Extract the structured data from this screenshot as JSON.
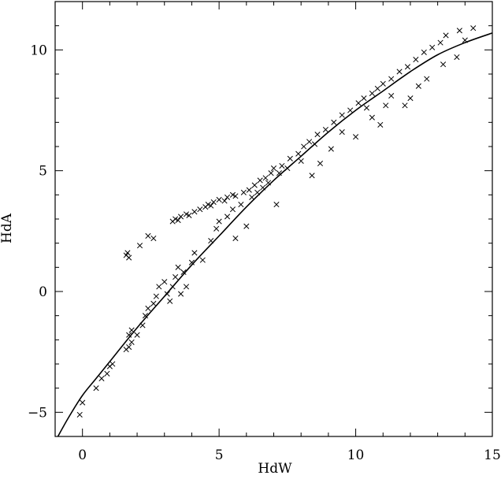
{
  "chart_data": {
    "type": "scatter",
    "title": "",
    "xlabel": "HdW",
    "ylabel": "HdA",
    "xlim": [
      -1,
      15
    ],
    "ylim": [
      -6,
      12
    ],
    "xticks": [
      0,
      5,
      10,
      15
    ],
    "yticks": [
      -5,
      0,
      5,
      10
    ],
    "xtick_labels": [
      "0",
      "5",
      "10",
      "15"
    ],
    "ytick_labels": [
      "−5",
      "0",
      "5",
      "10"
    ],
    "grid": false,
    "marker": "x",
    "series": [
      {
        "points": [
          [
            -0.1,
            -5.1
          ],
          [
            0.0,
            -4.6
          ],
          [
            0.5,
            -4.0
          ],
          [
            0.7,
            -3.6
          ],
          [
            0.9,
            -3.4
          ],
          [
            1.0,
            -3.1
          ],
          [
            1.1,
            -3.0
          ],
          [
            1.6,
            -2.4
          ],
          [
            1.7,
            -2.3
          ],
          [
            1.8,
            -2.1
          ],
          [
            1.7,
            -1.8
          ],
          [
            1.8,
            -1.6
          ],
          [
            2.0,
            -1.8
          ],
          [
            2.2,
            -1.4
          ],
          [
            2.3,
            -1.0
          ],
          [
            2.4,
            -0.7
          ],
          [
            2.6,
            -0.5
          ],
          [
            2.7,
            -0.2
          ],
          [
            2.8,
            0.2
          ],
          [
            3.0,
            0.4
          ],
          [
            3.1,
            -0.1
          ],
          [
            3.2,
            -0.4
          ],
          [
            3.3,
            0.2
          ],
          [
            3.6,
            -0.1
          ],
          [
            3.8,
            0.2
          ],
          [
            3.4,
            0.6
          ],
          [
            3.5,
            1.0
          ],
          [
            3.7,
            0.8
          ],
          [
            4.0,
            1.2
          ],
          [
            4.1,
            1.6
          ],
          [
            4.4,
            1.3
          ],
          [
            4.7,
            2.1
          ],
          [
            4.9,
            2.6
          ],
          [
            5.0,
            2.9
          ],
          [
            5.3,
            3.1
          ],
          [
            5.5,
            3.4
          ],
          [
            5.6,
            2.2
          ],
          [
            5.8,
            3.6
          ],
          [
            6.0,
            2.7
          ],
          [
            6.2,
            3.9
          ],
          [
            6.4,
            4.1
          ],
          [
            6.6,
            4.3
          ],
          [
            6.8,
            4.5
          ],
          [
            7.1,
            3.6
          ],
          [
            7.2,
            4.9
          ],
          [
            7.5,
            5.1
          ],
          [
            8.0,
            5.4
          ],
          [
            8.4,
            4.8
          ],
          [
            8.5,
            6.1
          ],
          [
            8.7,
            5.3
          ],
          [
            9.1,
            5.9
          ],
          [
            9.5,
            6.6
          ],
          [
            10.0,
            6.4
          ],
          [
            10.4,
            7.6
          ],
          [
            10.6,
            7.2
          ],
          [
            10.9,
            6.9
          ],
          [
            11.1,
            7.7
          ],
          [
            11.3,
            8.1
          ],
          [
            11.8,
            7.7
          ],
          [
            12.0,
            8.0
          ],
          [
            12.3,
            8.5
          ],
          [
            12.6,
            8.8
          ],
          [
            13.2,
            9.4
          ],
          [
            13.7,
            9.7
          ],
          [
            14.0,
            10.4
          ]
        ]
      },
      {
        "points": [
          [
            1.6,
            1.5
          ],
          [
            1.65,
            1.6
          ],
          [
            1.7,
            1.4
          ],
          [
            2.1,
            1.9
          ],
          [
            2.4,
            2.3
          ],
          [
            2.6,
            2.2
          ],
          [
            3.3,
            2.9
          ],
          [
            3.4,
            3.0
          ],
          [
            3.5,
            2.95
          ],
          [
            3.6,
            3.1
          ],
          [
            3.8,
            3.2
          ],
          [
            3.9,
            3.15
          ],
          [
            4.1,
            3.3
          ],
          [
            4.3,
            3.4
          ],
          [
            4.5,
            3.5
          ],
          [
            4.6,
            3.6
          ],
          [
            4.7,
            3.55
          ],
          [
            4.8,
            3.7
          ],
          [
            5.0,
            3.8
          ],
          [
            5.2,
            3.75
          ],
          [
            5.3,
            3.9
          ],
          [
            5.5,
            4.0
          ],
          [
            5.6,
            3.95
          ],
          [
            5.9,
            4.1
          ],
          [
            6.1,
            4.2
          ],
          [
            6.3,
            4.4
          ],
          [
            6.5,
            4.6
          ],
          [
            6.7,
            4.7
          ],
          [
            6.9,
            4.9
          ],
          [
            7.0,
            5.1
          ],
          [
            7.3,
            5.2
          ],
          [
            7.6,
            5.5
          ],
          [
            7.9,
            5.7
          ],
          [
            8.1,
            6.0
          ],
          [
            8.3,
            6.2
          ],
          [
            8.6,
            6.5
          ],
          [
            8.9,
            6.7
          ],
          [
            9.2,
            7.0
          ],
          [
            9.5,
            7.3
          ],
          [
            9.8,
            7.5
          ],
          [
            10.1,
            7.8
          ],
          [
            10.3,
            8.0
          ],
          [
            10.6,
            8.2
          ],
          [
            10.8,
            8.4
          ],
          [
            11.0,
            8.6
          ],
          [
            11.3,
            8.8
          ],
          [
            11.6,
            9.1
          ],
          [
            11.9,
            9.3
          ],
          [
            12.2,
            9.6
          ],
          [
            12.5,
            9.9
          ],
          [
            12.8,
            10.1
          ],
          [
            13.1,
            10.3
          ],
          [
            13.3,
            10.6
          ],
          [
            13.8,
            10.8
          ],
          [
            14.3,
            10.9
          ]
        ]
      }
    ],
    "fit_curve": {
      "points": [
        [
          -0.9,
          -6.0
        ],
        [
          -0.5,
          -5.2
        ],
        [
          0.0,
          -4.3
        ],
        [
          0.5,
          -3.6
        ],
        [
          1.0,
          -2.9
        ],
        [
          2.0,
          -1.5
        ],
        [
          3.0,
          -0.2
        ],
        [
          4.0,
          1.1
        ],
        [
          5.0,
          2.3
        ],
        [
          6.0,
          3.5
        ],
        [
          7.0,
          4.6
        ],
        [
          8.0,
          5.6
        ],
        [
          9.0,
          6.6
        ],
        [
          10.0,
          7.5
        ],
        [
          11.0,
          8.3
        ],
        [
          12.0,
          9.1
        ],
        [
          13.0,
          9.8
        ],
        [
          14.0,
          10.3
        ],
        [
          15.0,
          10.7
        ]
      ]
    }
  }
}
